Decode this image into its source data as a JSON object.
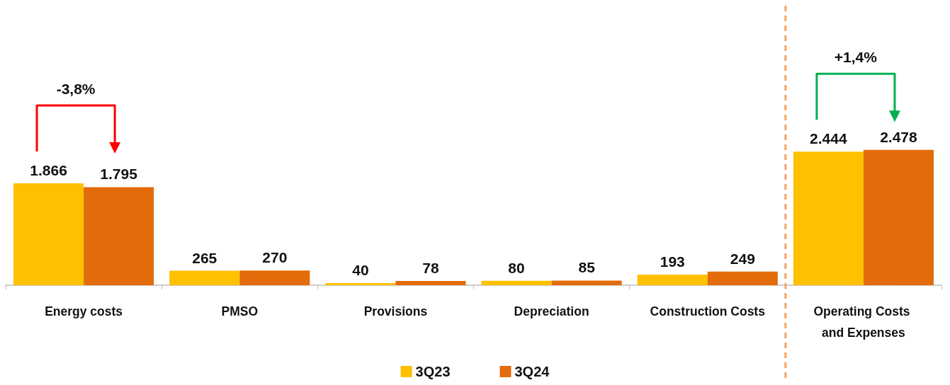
{
  "chart_data": {
    "type": "bar",
    "categories": [
      "Energy costs",
      "PMSO",
      "Provisions",
      "Depreciation",
      "Construction Costs",
      "Operating Costs and Expenses"
    ],
    "series": [
      {
        "name": "3Q23",
        "color": "#ffc000",
        "values": [
          1866,
          265,
          40,
          80,
          193,
          2444
        ],
        "value_labels": [
          "1.866",
          "265",
          "40",
          "80",
          "193",
          "2.444"
        ]
      },
      {
        "name": "3Q24",
        "color": "#e36c0a",
        "values": [
          1795,
          270,
          78,
          85,
          249,
          2478
        ],
        "value_labels": [
          "1.795",
          "270",
          "78",
          "85",
          "249",
          "2.478"
        ]
      }
    ],
    "annotations": [
      "-3,8%",
      "+1,4%"
    ],
    "ref_lines": [
      {
        "axis": "x",
        "value": "Operating Costs and Expenses",
        "color": "#f4a460",
        "line_style": "dashed"
      }
    ],
    "tick_labels": "x",
    "legend": "bottom"
  }
}
